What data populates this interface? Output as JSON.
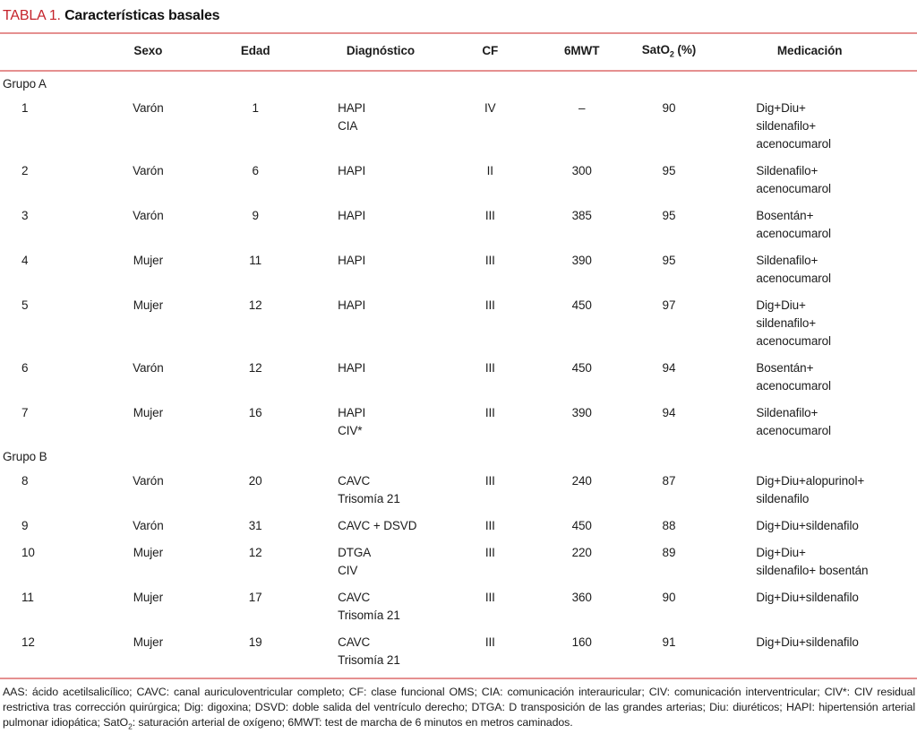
{
  "title": {
    "tag": "TABLA 1.",
    "text": "Características basales"
  },
  "header": {
    "sexo": "Sexo",
    "edad": "Edad",
    "diagnostico": "Diagnóstico",
    "cf": "CF",
    "mwt": "6MWT",
    "sato2": {
      "pre": "SatO",
      "sub": "2",
      "post": " (%)"
    },
    "medicacion": "Medicación"
  },
  "table": {
    "groups": [
      {
        "label": "Grupo A",
        "rows": [
          {
            "num": "1",
            "sexo": "Varón",
            "edad": "1",
            "diagnostico": [
              "HAPI",
              "CIA"
            ],
            "cf": "IV",
            "mwt": "–",
            "sato2": "90",
            "medicacion": [
              "Dig+Diu+",
              "sildenafilo+",
              "acenocumarol"
            ]
          },
          {
            "num": "2",
            "sexo": "Varón",
            "edad": "6",
            "diagnostico": [
              "HAPI"
            ],
            "cf": "II",
            "mwt": "300",
            "sato2": "95",
            "medicacion": [
              "Sildenafilo+",
              "acenocumarol"
            ]
          },
          {
            "num": "3",
            "sexo": "Varón",
            "edad": "9",
            "diagnostico": [
              "HAPI"
            ],
            "cf": "III",
            "mwt": "385",
            "sato2": "95",
            "medicacion": [
              "Bosentán+",
              "acenocumarol"
            ]
          },
          {
            "num": "4",
            "sexo": "Mujer",
            "edad": "11",
            "diagnostico": [
              "HAPI"
            ],
            "cf": "III",
            "mwt": "390",
            "sato2": "95",
            "medicacion": [
              "Sildenafilo+",
              "acenocumarol"
            ]
          },
          {
            "num": "5",
            "sexo": "Mujer",
            "edad": "12",
            "diagnostico": [
              "HAPI"
            ],
            "cf": "III",
            "mwt": "450",
            "sato2": "97",
            "medicacion": [
              "Dig+Diu+",
              "sildenafilo+",
              "acenocumarol"
            ]
          },
          {
            "num": "6",
            "sexo": "Varón",
            "edad": "12",
            "diagnostico": [
              "HAPI"
            ],
            "cf": "III",
            "mwt": "450",
            "sato2": "94",
            "medicacion": [
              "Bosentán+",
              "acenocumarol"
            ]
          },
          {
            "num": "7",
            "sexo": "Mujer",
            "edad": "16",
            "diagnostico": [
              "HAPI",
              "CIV*"
            ],
            "cf": "III",
            "mwt": "390",
            "sato2": "94",
            "medicacion": [
              "Sildenafilo+",
              "acenocumarol"
            ]
          }
        ]
      },
      {
        "label": "Grupo B",
        "rows": [
          {
            "num": "8",
            "sexo": "Varón",
            "edad": "20",
            "diagnostico": [
              "CAVC",
              "Trisomía 21"
            ],
            "cf": "III",
            "mwt": "240",
            "sato2": "87",
            "medicacion": [
              "Dig+Diu+alopurinol+",
              "sildenafilo"
            ]
          },
          {
            "num": "9",
            "sexo": "Varón",
            "edad": "31",
            "diagnostico": [
              "CAVC + DSVD"
            ],
            "cf": "III",
            "mwt": "450",
            "sato2": "88",
            "medicacion": [
              "Dig+Diu+sildenafilo"
            ]
          },
          {
            "num": "10",
            "sexo": "Mujer",
            "edad": "12",
            "diagnostico": [
              "DTGA",
              "CIV"
            ],
            "cf": "III",
            "mwt": "220",
            "sato2": "89",
            "medicacion": [
              "Dig+Diu+",
              "sildenafilo+ bosentán"
            ]
          },
          {
            "num": "11",
            "sexo": "Mujer",
            "edad": "17",
            "diagnostico": [
              "CAVC",
              "Trisomía 21"
            ],
            "cf": "III",
            "mwt": "360",
            "sato2": "90",
            "medicacion": [
              "Dig+Diu+sildenafilo"
            ]
          },
          {
            "num": "12",
            "sexo": "Mujer",
            "edad": "19",
            "diagnostico": [
              "CAVC",
              "Trisomía 21"
            ],
            "cf": "III",
            "mwt": "160",
            "sato2": "91",
            "medicacion": [
              "Dig+Diu+sildenafilo"
            ]
          }
        ]
      }
    ]
  },
  "footnote": {
    "pre": "AAS: ácido acetilsalicílico; CAVC: canal auriculoventricular completo; CF: clase funcional OMS; CIA: comunicación interauricular; CIV: comunicación interventricular; CIV*: CIV residual restrictiva tras corrección quirúrgica; Dig: digoxina; DSVD: doble salida del ventrículo derecho; DTGA: D transposición de las grandes arterias; Diu: diuréticos; HAPI: hipertensión arterial pulmonar idiopática; SatO",
    "sub": "2",
    "post": ": saturación arterial de oxígeno; 6MWT: test de marcha de 6 minutos en metros caminados."
  },
  "colors": {
    "accent_red": "#c5232b",
    "rule_pink": "#e59090",
    "text": "#1c1c1c"
  }
}
